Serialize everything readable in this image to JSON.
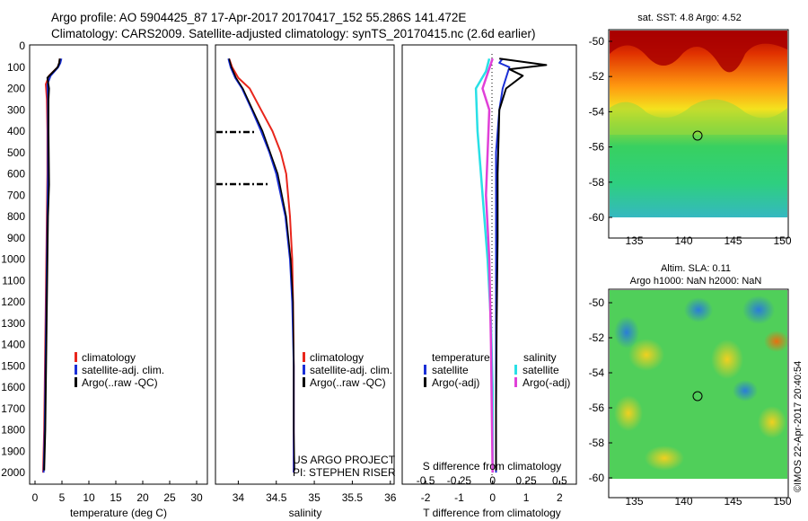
{
  "header": {
    "line1": "Argo profile: AO 5904425_87 17-Apr-2017 20170417_152 55.286S 141.472E",
    "line2": "Climatology: CARS2009. Satellite-adjusted climatology: synTS_20170415.nc (2.6d earlier)"
  },
  "depth_axis": {
    "ticks": [
      "0",
      "100",
      "200",
      "300",
      "400",
      "500",
      "600",
      "700",
      "800",
      "900",
      "1000",
      "1100",
      "1200",
      "1300",
      "1400",
      "1500",
      "1600",
      "1700",
      "1800",
      "1900",
      "2000"
    ],
    "max": 2050
  },
  "temp_panel": {
    "xlabel": "temperature (deg C)",
    "xticks": [
      "0",
      "5",
      "10",
      "15",
      "20",
      "25",
      "30"
    ],
    "xlim": [
      -1,
      32
    ],
    "legend": [
      "climatology",
      "satellite-adj. clim.",
      "Argo(..raw -QC)"
    ]
  },
  "sal_panel": {
    "xlabel": "salinity",
    "xticks": [
      "34",
      "34.5",
      "35",
      "35.5",
      "36"
    ],
    "xlim": [
      33.7,
      36.05
    ],
    "legend": [
      "climatology",
      "satellite-adj. clim.",
      "Argo(..raw -QC)"
    ],
    "credit1": "US ARGO PROJECT",
    "credit2": "PI: STEPHEN RISER"
  },
  "diff_panel": {
    "xlabel": "T difference from climatology",
    "xlabel2": "S difference from climatology",
    "xticks": [
      "-2",
      "-1",
      "0",
      "1",
      "2"
    ],
    "xticks2": [
      "-0.5",
      "-0.25",
      "0",
      "0.25",
      "0.5"
    ],
    "xlim": [
      -2.7,
      2.5
    ],
    "legend_left_title": "temperature",
    "legend_right_title": "salinity",
    "legend_left": [
      "satellite",
      "Argo(-adj)"
    ],
    "legend_right": [
      "satellite",
      "Argo(-adj)"
    ]
  },
  "map_sst": {
    "title": "sat. SST: 4.8 Argo: 4.52",
    "xticks": [
      "135",
      "140",
      "145",
      "150"
    ],
    "yticks": [
      "-50",
      "-52",
      "-54",
      "-56",
      "-58",
      "-60"
    ]
  },
  "map_sla": {
    "title1": "Altim. SLA: 0.11",
    "title2": "Argo h1000: NaN h2000: NaN",
    "xticks": [
      "135",
      "140",
      "145",
      "150"
    ],
    "yticks": [
      "-50",
      "-52",
      "-54",
      "-56",
      "-58",
      "-60"
    ]
  },
  "stamp": "©IMOS 22-Apr-2017 20:40:54",
  "colors": {
    "climatology": "#e8261c",
    "satellite_adj": "#1a2fd6",
    "argo": "#000000",
    "salinity_sat": "#29e0e6",
    "salinity_argo": "#e040d8"
  },
  "chart_data": [
    {
      "type": "line",
      "title": "",
      "xlabel": "temperature (deg C)",
      "ylabel": "",
      "xlim": [
        -1,
        32
      ],
      "ylim": [
        2050,
        0
      ],
      "series": [
        {
          "name": "climatology",
          "x": [
            4.6,
            4.5,
            4.2,
            2.6,
            2.0,
            2.2,
            2.3,
            2.3,
            2.2,
            2.1,
            2.0,
            1.9,
            1.8,
            1.7,
            1.5
          ],
          "y": [
            60,
            80,
            100,
            140,
            180,
            250,
            400,
            600,
            800,
            1000,
            1200,
            1400,
            1600,
            1800,
            2000
          ]
        },
        {
          "name": "satellite-adj. clim.",
          "x": [
            4.9,
            4.7,
            4.3,
            2.9,
            2.3,
            2.4,
            2.4,
            2.4,
            2.3,
            2.2,
            2.1,
            2.0,
            1.9,
            1.8,
            1.6
          ],
          "y": [
            60,
            80,
            100,
            140,
            180,
            250,
            400,
            600,
            800,
            1000,
            1200,
            1400,
            1600,
            1800,
            2000
          ]
        },
        {
          "name": "Argo(..raw -QC)",
          "x": [
            4.6,
            4.5,
            4.2,
            2.3,
            2.6,
            2.5,
            2.5,
            2.6,
            2.4,
            2.3,
            2.2,
            2.1,
            2.0,
            1.9,
            1.7
          ],
          "y": [
            60,
            80,
            100,
            150,
            200,
            250,
            400,
            650,
            800,
            1000,
            1200,
            1400,
            1600,
            1800,
            1990
          ]
        }
      ]
    },
    {
      "type": "line",
      "title": "",
      "xlabel": "salinity",
      "ylabel": "",
      "xlim": [
        33.7,
        36.05
      ],
      "ylim": [
        2050,
        0
      ],
      "series": [
        {
          "name": "climatology",
          "x": [
            33.88,
            33.92,
            34.0,
            34.15,
            34.3,
            34.45,
            34.56,
            34.63,
            34.68,
            34.71,
            34.72,
            34.73,
            34.73,
            34.73
          ],
          "y": [
            60,
            100,
            150,
            200,
            300,
            400,
            500,
            600,
            800,
            1000,
            1200,
            1500,
            1800,
            2000
          ]
        },
        {
          "name": "satellite-adj. clim.",
          "x": [
            33.87,
            33.9,
            33.96,
            34.05,
            34.18,
            34.3,
            34.41,
            34.5,
            34.62,
            34.68,
            34.71,
            34.73,
            34.73,
            34.73
          ],
          "y": [
            60,
            100,
            150,
            200,
            300,
            400,
            500,
            600,
            800,
            1000,
            1200,
            1500,
            1800,
            2000
          ]
        },
        {
          "name": "Argo(..raw -QC)",
          "x": [
            33.88,
            33.91,
            33.97,
            34.06,
            34.19,
            34.32,
            34.42,
            34.52,
            34.63,
            34.69,
            34.72,
            34.73,
            34.73,
            34.74
          ],
          "y": [
            60,
            100,
            150,
            200,
            300,
            400,
            500,
            600,
            800,
            1000,
            1200,
            1500,
            1800,
            1990
          ]
        }
      ]
    },
    {
      "type": "line",
      "title": "",
      "xlabel": "T difference from climatology",
      "xlabel2": "S difference from climatology",
      "ylabel": "",
      "xlim": [
        -2.7,
        2.5
      ],
      "ylim": [
        2050,
        0
      ],
      "series": [
        {
          "name": "temperature satellite",
          "x": [
            0.3,
            0.2,
            0.5,
            0.3,
            0.2,
            0.1,
            0.1,
            0.1,
            0.1,
            0.1,
            0.1,
            0.1
          ],
          "y": [
            60,
            80,
            100,
            200,
            300,
            500,
            800,
            1100,
            1400,
            1700,
            1900,
            2000
          ]
        },
        {
          "name": "temperature Argo(-adj)",
          "x": [
            0.2,
            1.6,
            0.5,
            0.9,
            0.4,
            0.2,
            0.15,
            0.15,
            0.12,
            0.1,
            0.1
          ],
          "y": [
            60,
            90,
            110,
            140,
            200,
            300,
            600,
            900,
            1300,
            1700,
            1990
          ]
        },
        {
          "name": "salinity satellite",
          "x": [
            -0.1,
            -0.2,
            -0.5,
            -0.45,
            -0.35,
            -0.25,
            -0.15,
            -0.05,
            0.0,
            0.0
          ],
          "y": [
            60,
            120,
            200,
            400,
            600,
            800,
            1000,
            1300,
            1600,
            2000
          ]
        },
        {
          "name": "salinity Argo(-adj)",
          "x": [
            0.0,
            -0.3,
            -0.1,
            -0.2,
            -0.1,
            -0.05,
            0.0
          ],
          "y": [
            60,
            200,
            300,
            700,
            1000,
            1400,
            2000
          ]
        }
      ]
    }
  ]
}
